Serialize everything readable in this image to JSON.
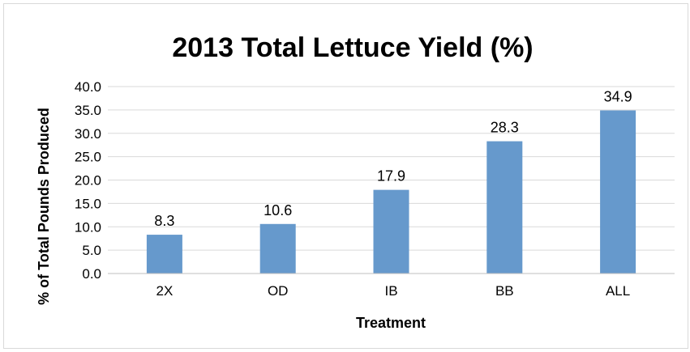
{
  "chart_data": {
    "type": "bar",
    "title": "2013 Total Lettuce Yield (%)",
    "xlabel": "Treatment",
    "ylabel": "% of Total Pounds Produced",
    "categories": [
      "2X",
      "OD",
      "IB",
      "BB",
      "ALL"
    ],
    "values": [
      8.3,
      10.6,
      17.9,
      28.3,
      34.9
    ],
    "data_labels": [
      "8.3",
      "10.6",
      "17.9",
      "28.3",
      "34.9"
    ],
    "ylim": [
      0,
      40
    ],
    "yticks": [
      "0.0",
      "5.0",
      "10.0",
      "15.0",
      "20.0",
      "25.0",
      "30.0",
      "35.0",
      "40.0"
    ],
    "ytick_values": [
      0,
      5,
      10,
      15,
      20,
      25,
      30,
      35,
      40
    ],
    "grid": true,
    "legend": "none",
    "colors": {
      "bar": "#6699cc",
      "grid": "#d9d9d9",
      "axis": "#bfbfbf",
      "frame": "#d9d9d9"
    }
  }
}
